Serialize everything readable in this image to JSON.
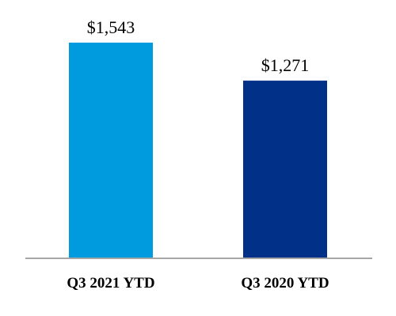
{
  "chart_data": {
    "type": "bar",
    "title": "",
    "xlabel": "",
    "ylabel": "",
    "categories": [
      "Q3 2021 YTD",
      "Q3 2020 YTD"
    ],
    "values": [
      1543,
      1271
    ],
    "value_labels": [
      "$1,543",
      "$1,271"
    ],
    "bar_colors": [
      "#009ADE",
      "#003087"
    ],
    "axis_color": "#A6A6A6",
    "ylim": [
      0,
      1650
    ],
    "grid": false,
    "legend": "none"
  }
}
